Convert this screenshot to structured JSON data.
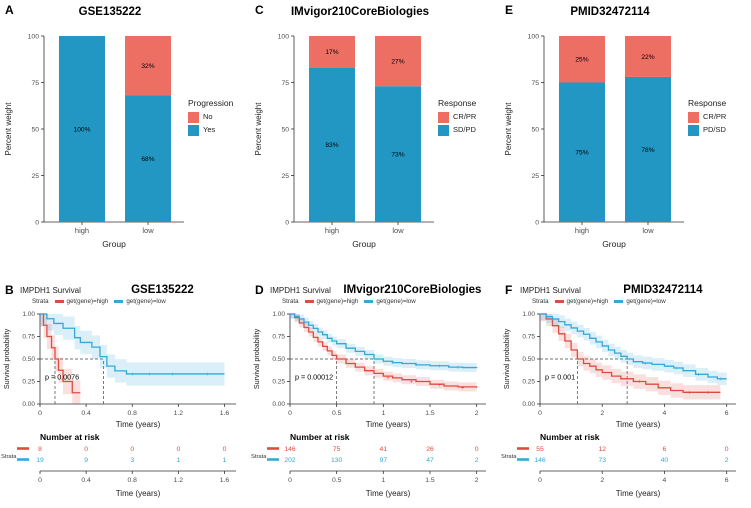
{
  "colors": {
    "axis_text": "#4d4d4d",
    "axis_line": "#333333",
    "guide": "#444444",
    "bar_red": "#ED6E63",
    "bar_blue": "#2397C4",
    "km_red": "#E04B40",
    "km_blue": "#35A8D6"
  },
  "chart_data": [
    {
      "type": "bar",
      "panel_label": "A",
      "title": "GSE135222",
      "xlabel": "Group",
      "ylabel": "Percent weight",
      "categories": [
        "high",
        "low"
      ],
      "ylim": [
        0,
        100
      ],
      "yticks": [
        0,
        25,
        50,
        75,
        100
      ],
      "ytick_labels": [
        "0",
        "25",
        "50",
        "75",
        "100"
      ],
      "legend_title": "Progression",
      "legend_position": "right",
      "series": [
        {
          "name": "No",
          "color": "#ED6E63",
          "values": [
            0,
            32
          ],
          "labels": [
            "",
            "32%"
          ]
        },
        {
          "name": "Yes",
          "color": "#2397C4",
          "values": [
            100,
            68
          ],
          "labels": [
            "100%",
            "68%"
          ]
        }
      ]
    },
    {
      "type": "bar",
      "panel_label": "C",
      "title": "IMvigor210CoreBiologies",
      "xlabel": "Group",
      "ylabel": "Percent weight",
      "categories": [
        "high",
        "low"
      ],
      "ylim": [
        0,
        100
      ],
      "yticks": [
        0,
        25,
        50,
        75,
        100
      ],
      "ytick_labels": [
        "0",
        "25",
        "50",
        "75",
        "100"
      ],
      "legend_title": "Response",
      "legend_position": "right",
      "series": [
        {
          "name": "CR/PR",
          "color": "#ED6E63",
          "values": [
            17,
            27
          ],
          "labels": [
            "17%",
            "27%"
          ]
        },
        {
          "name": "SD/PD",
          "color": "#2397C4",
          "values": [
            83,
            73
          ],
          "labels": [
            "83%",
            "73%"
          ]
        }
      ]
    },
    {
      "type": "bar",
      "panel_label": "E",
      "title": "PMID32472114",
      "xlabel": "Group",
      "ylabel": "Percent weight",
      "categories": [
        "high",
        "low"
      ],
      "ylim": [
        0,
        100
      ],
      "yticks": [
        0,
        25,
        50,
        75,
        100
      ],
      "ytick_labels": [
        "0",
        "25",
        "50",
        "75",
        "100"
      ],
      "legend_title": "Response",
      "legend_position": "right",
      "series": [
        {
          "name": "CR/PR",
          "color": "#ED6E63",
          "values": [
            25,
            22
          ],
          "labels": [
            "25%",
            "22%"
          ]
        },
        {
          "name": "PD/SD",
          "color": "#2397C4",
          "values": [
            75,
            78
          ],
          "labels": [
            "75%",
            "78%"
          ]
        }
      ]
    },
    {
      "type": "km",
      "panel_label": "B",
      "subtitle": "IMPDH1 Survival",
      "title": "GSE135222",
      "xlabel": "Time (years)",
      "ylabel": "Survival probability",
      "legend_title": "Strata",
      "pvalue": "p = 0.0076",
      "risk_title": "Number at risk",
      "strata_axis_label": "Strata",
      "xmax": 1.7,
      "xticks": [
        0,
        0.4,
        0.8,
        1.2,
        1.6
      ],
      "xtick_labels": [
        "0",
        "0.4",
        "0.8",
        "1.2",
        "1.6"
      ],
      "ytick_values": [
        0,
        0.25,
        0.5,
        0.75,
        1
      ],
      "ytick_labels": [
        "0.00",
        "0.25",
        "0.50",
        "0.75",
        "1.00"
      ],
      "strata": [
        {
          "name": "get(gene)=high",
          "color": "#E04B40",
          "band": 0.14,
          "median": 0.13,
          "steps": [
            [
              0,
              1
            ],
            [
              0.03,
              0.875
            ],
            [
              0.06,
              0.75
            ],
            [
              0.1,
              0.625
            ],
            [
              0.13,
              0.5
            ],
            [
              0.16,
              0.375
            ],
            [
              0.2,
              0.25
            ],
            [
              0.28,
              0.125
            ],
            [
              0.35,
              0.125
            ]
          ],
          "censors": [],
          "risk": [
            8,
            0,
            0,
            0,
            0
          ]
        },
        {
          "name": "get(gene)=low",
          "color": "#35A8D6",
          "band": 0.13,
          "median": 0.55,
          "steps": [
            [
              0,
              1
            ],
            [
              0.06,
              0.947
            ],
            [
              0.12,
              0.895
            ],
            [
              0.2,
              0.842
            ],
            [
              0.3,
              0.737
            ],
            [
              0.35,
              0.684
            ],
            [
              0.45,
              0.632
            ],
            [
              0.52,
              0.526
            ],
            [
              0.58,
              0.421
            ],
            [
              0.65,
              0.368
            ],
            [
              0.75,
              0.334
            ],
            [
              1.05,
              0.334
            ],
            [
              1.6,
              0.334
            ]
          ],
          "censors": [
            [
              0.8,
              0.334
            ],
            [
              0.95,
              0.334
            ],
            [
              1.15,
              0.334
            ],
            [
              1.45,
              0.334
            ]
          ],
          "risk": [
            19,
            9,
            3,
            1,
            1
          ]
        }
      ]
    },
    {
      "type": "km",
      "panel_label": "D",
      "subtitle": "IMPDH1 Survival",
      "title": "IMvigor210CoreBiologies",
      "xlabel": "Time (years)",
      "ylabel": "Survival probability",
      "legend_title": "Strata",
      "pvalue": "p = 0.00012",
      "risk_title": "Number at risk",
      "strata_axis_label": "Strata",
      "xmax": 2.1,
      "xticks": [
        0,
        0.5,
        1,
        1.5,
        2
      ],
      "xtick_labels": [
        "0",
        "0.5",
        "1",
        "1.5",
        "2"
      ],
      "ytick_values": [
        0,
        0.25,
        0.5,
        0.75,
        1
      ],
      "ytick_labels": [
        "0.00",
        "0.25",
        "0.50",
        "0.75",
        "1.00"
      ],
      "strata": [
        {
          "name": "get(gene)=high",
          "color": "#E04B40",
          "band": 0.05,
          "median": 0.5,
          "steps": [
            [
              0,
              1
            ],
            [
              0.05,
              0.96
            ],
            [
              0.1,
              0.9
            ],
            [
              0.15,
              0.85
            ],
            [
              0.2,
              0.8
            ],
            [
              0.25,
              0.74
            ],
            [
              0.3,
              0.69
            ],
            [
              0.35,
              0.64
            ],
            [
              0.4,
              0.59
            ],
            [
              0.45,
              0.54
            ],
            [
              0.5,
              0.5
            ],
            [
              0.6,
              0.45
            ],
            [
              0.7,
              0.41
            ],
            [
              0.8,
              0.37
            ],
            [
              0.9,
              0.34
            ],
            [
              1,
              0.31
            ],
            [
              1.1,
              0.29
            ],
            [
              1.2,
              0.27
            ],
            [
              1.35,
              0.25
            ],
            [
              1.5,
              0.22
            ],
            [
              1.65,
              0.2
            ],
            [
              1.8,
              0.19
            ],
            [
              2,
              0.18
            ]
          ],
          "censors": [
            [
              1.05,
              0.29
            ],
            [
              1.3,
              0.25
            ],
            [
              1.6,
              0.21
            ],
            [
              1.85,
              0.18
            ]
          ],
          "risk": [
            146,
            75,
            41,
            26,
            0
          ]
        },
        {
          "name": "get(gene)=low",
          "color": "#35A8D6",
          "band": 0.05,
          "median": 0.9,
          "steps": [
            [
              0,
              1
            ],
            [
              0.05,
              0.975
            ],
            [
              0.1,
              0.945
            ],
            [
              0.15,
              0.91
            ],
            [
              0.2,
              0.875
            ],
            [
              0.25,
              0.84
            ],
            [
              0.3,
              0.8
            ],
            [
              0.35,
              0.77
            ],
            [
              0.4,
              0.73
            ],
            [
              0.45,
              0.7
            ],
            [
              0.5,
              0.67
            ],
            [
              0.6,
              0.62
            ],
            [
              0.7,
              0.585
            ],
            [
              0.8,
              0.55
            ],
            [
              0.9,
              0.5
            ],
            [
              1,
              0.475
            ],
            [
              1.1,
              0.46
            ],
            [
              1.2,
              0.45
            ],
            [
              1.35,
              0.435
            ],
            [
              1.5,
              0.425
            ],
            [
              1.7,
              0.41
            ],
            [
              1.85,
              0.405
            ],
            [
              2,
              0.4
            ]
          ],
          "censors": [
            [
              1.1,
              0.46
            ],
            [
              1.35,
              0.435
            ],
            [
              1.6,
              0.42
            ],
            [
              1.8,
              0.405
            ]
          ],
          "risk": [
            202,
            130,
            97,
            47,
            2
          ]
        }
      ]
    },
    {
      "type": "km",
      "panel_label": "F",
      "subtitle": "IMPDH1 Survival",
      "title": "PMID32472114",
      "xlabel": "Time (years)",
      "ylabel": "Survival probability",
      "legend_title": "Strata",
      "pvalue": "p = 0.001",
      "risk_title": "Number at risk",
      "strata_axis_label": "Strata",
      "xmax": 6.3,
      "xticks": [
        0,
        2,
        4,
        6
      ],
      "xtick_labels": [
        "0",
        "2",
        "4",
        "6"
      ],
      "ytick_values": [
        0,
        0.25,
        0.5,
        0.75,
        1
      ],
      "ytick_labels": [
        "0.00",
        "0.25",
        "0.50",
        "0.75",
        "1.00"
      ],
      "strata": [
        {
          "name": "get(gene)=high",
          "color": "#E04B40",
          "band": 0.08,
          "median": 1.2,
          "steps": [
            [
              0,
              1
            ],
            [
              0.2,
              0.945
            ],
            [
              0.4,
              0.87
            ],
            [
              0.6,
              0.78
            ],
            [
              0.8,
              0.7
            ],
            [
              1,
              0.6
            ],
            [
              1.2,
              0.5
            ],
            [
              1.4,
              0.45
            ],
            [
              1.6,
              0.42
            ],
            [
              1.8,
              0.38
            ],
            [
              2,
              0.35
            ],
            [
              2.3,
              0.31
            ],
            [
              2.6,
              0.28
            ],
            [
              3,
              0.25
            ],
            [
              3.4,
              0.22
            ],
            [
              3.8,
              0.18
            ],
            [
              4.2,
              0.15
            ],
            [
              4.6,
              0.13
            ],
            [
              5.8,
              0.13
            ]
          ],
          "censors": [
            [
              3.2,
              0.25
            ],
            [
              4.8,
              0.13
            ],
            [
              5.4,
              0.13
            ]
          ],
          "risk": [
            55,
            12,
            6,
            0
          ]
        },
        {
          "name": "get(gene)=low",
          "color": "#35A8D6",
          "band": 0.07,
          "median": 2.8,
          "steps": [
            [
              0,
              1
            ],
            [
              0.2,
              0.97
            ],
            [
              0.4,
              0.945
            ],
            [
              0.6,
              0.915
            ],
            [
              0.8,
              0.88
            ],
            [
              1,
              0.845
            ],
            [
              1.2,
              0.81
            ],
            [
              1.4,
              0.775
            ],
            [
              1.6,
              0.73
            ],
            [
              1.8,
              0.69
            ],
            [
              2,
              0.645
            ],
            [
              2.2,
              0.6
            ],
            [
              2.4,
              0.565
            ],
            [
              2.6,
              0.53
            ],
            [
              2.8,
              0.5
            ],
            [
              3,
              0.47
            ],
            [
              3.3,
              0.455
            ],
            [
              3.6,
              0.44
            ],
            [
              4,
              0.42
            ],
            [
              4.3,
              0.4
            ],
            [
              4.6,
              0.37
            ],
            [
              5,
              0.33
            ],
            [
              5.4,
              0.3
            ],
            [
              5.7,
              0.28
            ],
            [
              6,
              0.28
            ]
          ],
          "censors": [
            [
              3.4,
              0.45
            ],
            [
              4.4,
              0.4
            ],
            [
              5.1,
              0.33
            ],
            [
              5.8,
              0.28
            ]
          ],
          "risk": [
            146,
            73,
            40,
            2
          ]
        }
      ]
    }
  ]
}
